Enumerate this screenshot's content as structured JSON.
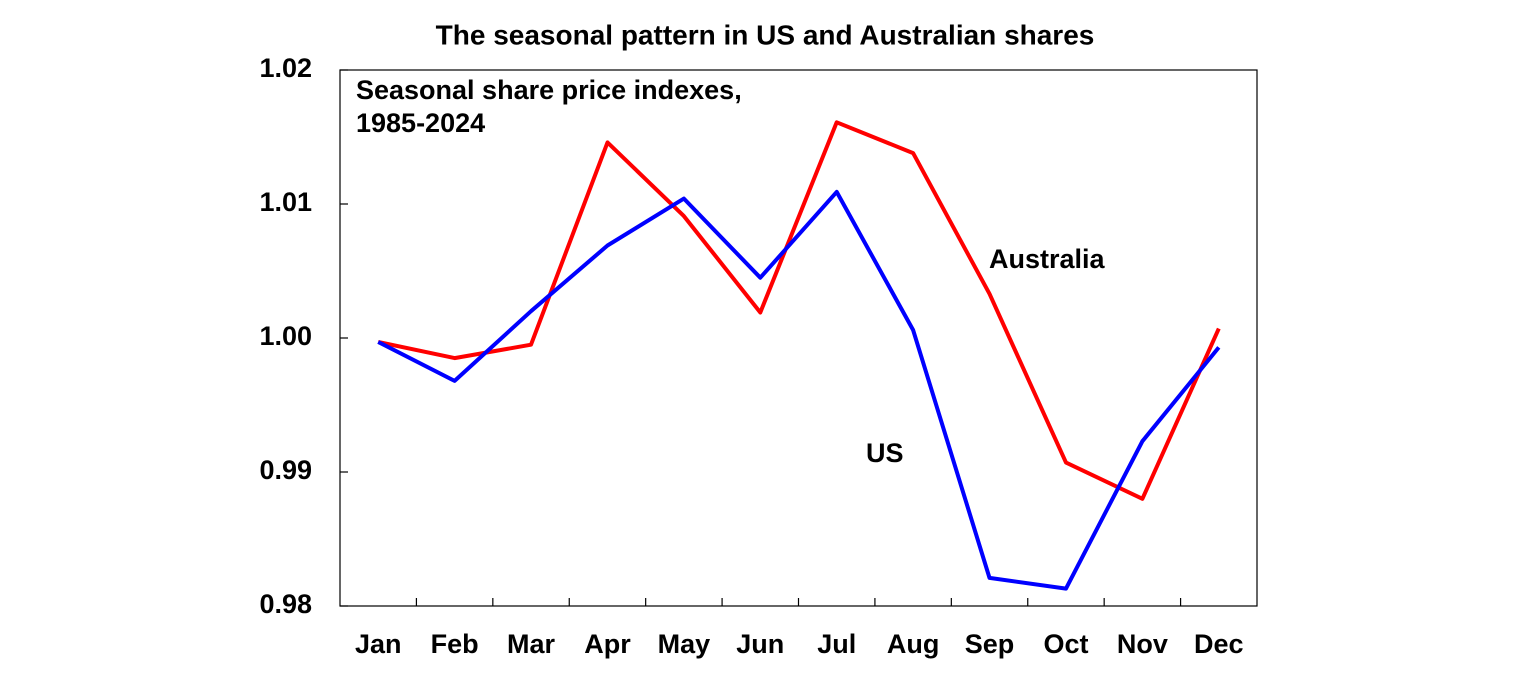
{
  "chart_data": {
    "type": "line",
    "title": "The seasonal pattern in US and Australian shares",
    "annotation": [
      "Seasonal share price indexes,",
      "1985-2024"
    ],
    "categories": [
      "Jan",
      "Feb",
      "Mar",
      "Apr",
      "May",
      "Jun",
      "Jul",
      "Aug",
      "Sep",
      "Oct",
      "Nov",
      "Dec"
    ],
    "series": [
      {
        "name": "Australia",
        "color": "#ff0000",
        "values": [
          0.9997,
          0.9985,
          0.9995,
          1.0146,
          1.0091,
          1.0019,
          1.0161,
          1.0138,
          1.0033,
          0.9907,
          0.988,
          1.0007
        ]
      },
      {
        "name": "US",
        "color": "#0000ff",
        "values": [
          0.9997,
          0.9968,
          1.002,
          1.0069,
          1.0104,
          1.0045,
          1.0109,
          1.0006,
          0.9821,
          0.9813,
          0.9923,
          0.9993
        ]
      }
    ],
    "ylim": [
      0.98,
      1.02
    ],
    "yticks": [
      0.98,
      0.99,
      {
        "value": 1.0,
        "label": "1.00"
      },
      1.01,
      1.02
    ],
    "grid": false
  }
}
